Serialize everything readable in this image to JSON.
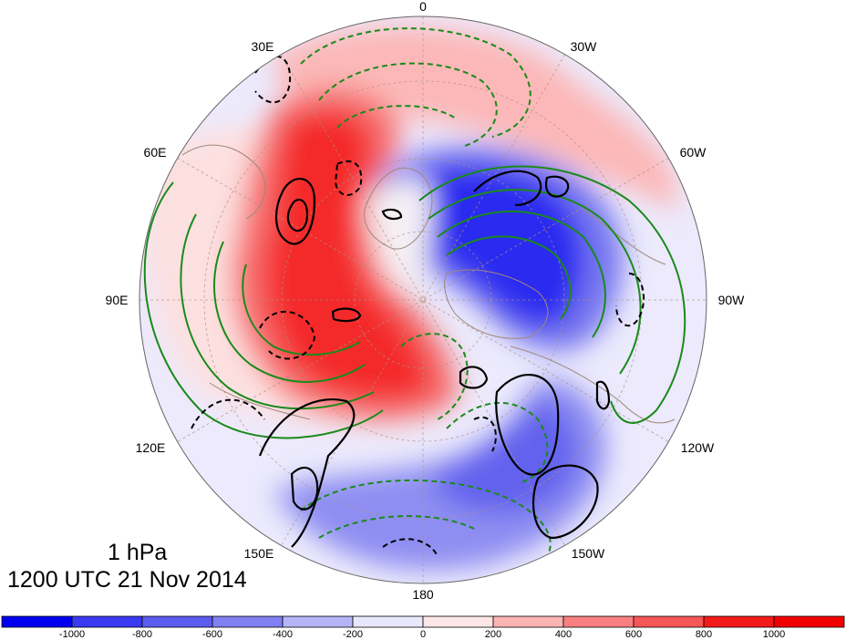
{
  "map": {
    "projection": "north-polar-stereographic",
    "longitude_labels": [
      "0",
      "30W",
      "60W",
      "90W",
      "120W",
      "150W",
      "180",
      "150E",
      "120E",
      "90E",
      "60E",
      "30E"
    ]
  },
  "title": {
    "level": "1 hPa",
    "time": "1200 UTC 21 Nov 2014"
  },
  "colorbar": {
    "tick_labels": [
      "-1000",
      "-800",
      "-600",
      "-400",
      "-200",
      "0",
      "200",
      "400",
      "600",
      "800",
      "1000"
    ],
    "colors": [
      "#0000f0",
      "#3a3af2",
      "#5c5cf0",
      "#8080f2",
      "#b4b4f6",
      "#e8e8fc",
      "#fde6e6",
      "#fbb4b4",
      "#f98080",
      "#f65656",
      "#f21a1a",
      "#f20000"
    ]
  },
  "colors": {
    "green_contour": "#1a8a1a",
    "black_contour": "#000000",
    "coastline": "#a08878",
    "grid": "#b09080"
  }
}
